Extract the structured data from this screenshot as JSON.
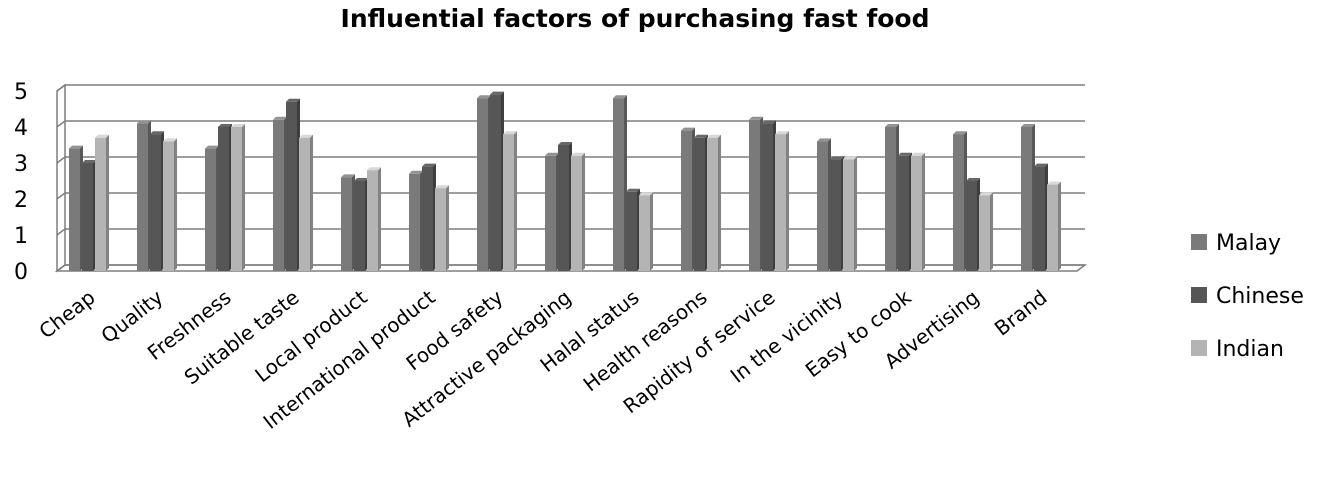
{
  "chart_data": {
    "type": "bar",
    "title": "Influential factors of purchasing fast food",
    "xlabel": "",
    "ylabel": "",
    "ylim": [
      0,
      5
    ],
    "yticks": [
      0,
      1,
      2,
      3,
      4,
      5
    ],
    "grid": true,
    "legend_position": "right",
    "categories": [
      "Cheap",
      "Quality",
      "Freshness",
      "Suitable taste",
      "Local product",
      "International product",
      "Food safety",
      "Attractive packaging",
      "Halal status",
      "Health reasons",
      "Rapidity of service",
      "In the vicinity",
      "Easy to cook",
      "Advertising",
      "Brand"
    ],
    "series": [
      {
        "name": "Malay",
        "color": "#7a7a7a",
        "values": [
          3.4,
          4.1,
          3.4,
          4.2,
          2.6,
          2.7,
          4.8,
          3.2,
          4.8,
          3.9,
          4.2,
          3.6,
          4.0,
          3.8,
          4.0
        ]
      },
      {
        "name": "Chinese",
        "color": "#565656",
        "values": [
          3.0,
          3.8,
          4.0,
          4.7,
          2.5,
          2.9,
          4.9,
          3.5,
          2.2,
          3.7,
          4.1,
          3.1,
          3.2,
          2.5,
          2.9
        ]
      },
      {
        "name": "Indian",
        "color": "#b4b4b4",
        "values": [
          3.7,
          3.6,
          4.0,
          3.7,
          2.8,
          2.3,
          3.8,
          3.2,
          2.1,
          3.7,
          3.8,
          3.1,
          3.2,
          2.1,
          2.4
        ]
      }
    ]
  }
}
